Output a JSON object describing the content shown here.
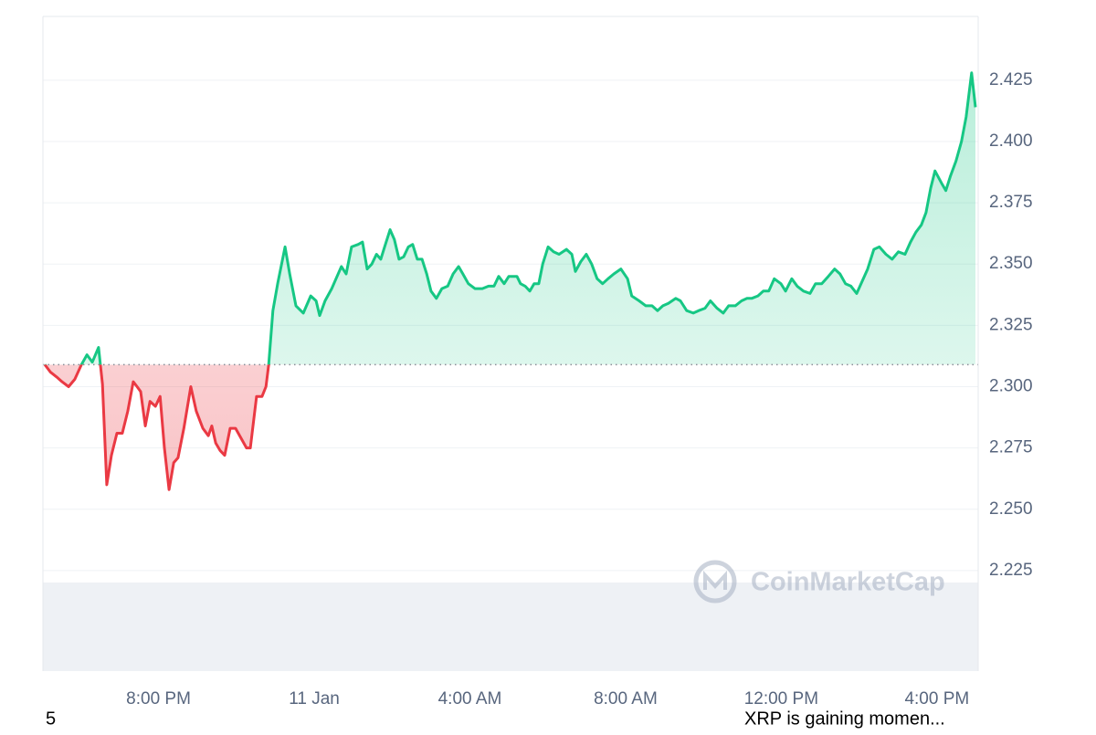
{
  "chart_data": {
    "type": "line",
    "x": [
      -6.92,
      -6.78,
      -6.62,
      -6.48,
      -6.31,
      -6.15,
      -5.98,
      -5.84,
      -5.7,
      -5.54,
      -5.44,
      -5.33,
      -5.21,
      -5.07,
      -4.93,
      -4.79,
      -4.65,
      -4.55,
      -4.46,
      -4.34,
      -4.22,
      -4.08,
      -3.96,
      -3.85,
      -3.73,
      -3.61,
      -3.5,
      -3.35,
      -3.17,
      -3.03,
      -2.86,
      -2.72,
      -2.63,
      -2.53,
      -2.42,
      -2.3,
      -2.16,
      -2.02,
      -1.88,
      -1.74,
      -1.64,
      -1.48,
      -1.34,
      -1.24,
      -1.17,
      -1.06,
      -0.94,
      -0.75,
      -0.63,
      -0.47,
      -0.28,
      -0.09,
      0.05,
      0.14,
      0.28,
      0.45,
      0.56,
      0.7,
      0.82,
      0.96,
      1.13,
      1.24,
      1.36,
      1.48,
      1.6,
      1.71,
      1.81,
      1.95,
      2.06,
      2.18,
      2.3,
      2.42,
      2.53,
      2.65,
      2.77,
      2.89,
      3.0,
      3.14,
      3.28,
      3.43,
      3.57,
      3.71,
      3.82,
      3.96,
      4.13,
      4.32,
      4.48,
      4.62,
      4.74,
      4.88,
      5.0,
      5.11,
      5.21,
      5.3,
      5.42,
      5.54,
      5.65,
      5.77,
      5.87,
      6.01,
      6.15,
      6.29,
      6.48,
      6.62,
      6.71,
      6.85,
      6.99,
      7.13,
      7.27,
      7.41,
      7.55,
      7.7,
      7.88,
      8.05,
      8.16,
      8.35,
      8.52,
      8.68,
      8.82,
      8.96,
      9.1,
      9.29,
      9.41,
      9.57,
      9.74,
      9.88,
      10.04,
      10.18,
      10.35,
      10.51,
      10.65,
      10.82,
      10.98,
      11.12,
      11.24,
      11.4,
      11.54,
      11.68,
      11.82,
      11.99,
      12.11,
      12.27,
      12.41,
      12.57,
      12.74,
      12.88,
      13.04,
      13.21,
      13.37,
      13.51,
      13.65,
      13.79,
      13.94,
      14.08,
      14.22,
      14.38,
      14.52,
      14.69,
      14.85,
      15.01,
      15.18,
      15.32,
      15.46,
      15.6,
      15.72,
      15.84,
      15.95,
      16.12,
      16.23,
      16.35,
      16.49,
      16.63,
      16.75,
      16.89,
      16.99
    ],
    "series": [
      {
        "values": [
          2.309,
          2.306,
          2.304,
          2.302,
          2.3,
          2.303,
          2.309,
          2.313,
          2.31,
          2.316,
          2.301,
          2.26,
          2.272,
          2.281,
          2.281,
          2.29,
          2.302,
          2.3,
          2.298,
          2.284,
          2.294,
          2.292,
          2.296,
          2.275,
          2.258,
          2.269,
          2.271,
          2.283,
          2.3,
          2.29,
          2.283,
          2.28,
          2.284,
          2.277,
          2.274,
          2.272,
          2.283,
          2.283,
          2.279,
          2.275,
          2.275,
          2.296,
          2.296,
          2.3,
          2.309,
          2.331,
          2.342,
          2.357,
          2.346,
          2.333,
          2.33,
          2.337,
          2.335,
          2.329,
          2.335,
          2.34,
          2.344,
          2.349,
          2.346,
          2.357,
          2.358,
          2.359,
          2.348,
          2.35,
          2.354,
          2.352,
          2.357,
          2.364,
          2.36,
          2.352,
          2.353,
          2.357,
          2.358,
          2.352,
          2.352,
          2.346,
          2.339,
          2.336,
          2.34,
          2.341,
          2.346,
          2.349,
          2.346,
          2.342,
          2.34,
          2.34,
          2.341,
          2.341,
          2.345,
          2.342,
          2.345,
          2.345,
          2.345,
          2.342,
          2.341,
          2.339,
          2.342,
          2.342,
          2.35,
          2.357,
          2.355,
          2.354,
          2.356,
          2.354,
          2.347,
          2.351,
          2.354,
          2.35,
          2.344,
          2.342,
          2.344,
          2.346,
          2.348,
          2.344,
          2.337,
          2.335,
          2.333,
          2.333,
          2.331,
          2.333,
          2.334,
          2.336,
          2.335,
          2.331,
          2.33,
          2.331,
          2.332,
          2.335,
          2.332,
          2.33,
          2.333,
          2.333,
          2.335,
          2.336,
          2.336,
          2.337,
          2.339,
          2.339,
          2.344,
          2.342,
          2.339,
          2.344,
          2.341,
          2.339,
          2.338,
          2.342,
          2.342,
          2.345,
          2.348,
          2.346,
          2.342,
          2.341,
          2.338,
          2.343,
          2.348,
          2.356,
          2.357,
          2.354,
          2.352,
          2.355,
          2.354,
          2.359,
          2.363,
          2.366,
          2.371,
          2.381,
          2.388,
          2.383,
          2.38,
          2.386,
          2.392,
          2.4,
          2.41,
          2.428,
          2.414
        ]
      }
    ],
    "baseline": 2.309,
    "up_color": "#16c784",
    "down_color": "#ea3943",
    "xlim": [
      -6.97,
      17.06
    ],
    "xticks": [
      {
        "value": -4,
        "label": "8:00 PM"
      },
      {
        "value": 0,
        "label": "11 Jan"
      },
      {
        "value": 4,
        "label": "4:00 AM"
      },
      {
        "value": 8,
        "label": "8:00 AM"
      },
      {
        "value": 12,
        "label": "12:00 PM"
      },
      {
        "value": 16,
        "label": "4:00 PM"
      }
    ],
    "ylim": [
      2.184,
      2.451
    ],
    "yticks": [
      2.225,
      {
        "value": 2.25,
        "label": "2.250"
      },
      2.275,
      {
        "value": 2.3,
        "label": "2.300"
      },
      2.325,
      {
        "value": 2.35,
        "label": "2.350"
      },
      2.375,
      {
        "value": 2.4,
        "label": "2.400"
      },
      2.425
    ],
    "grid": true,
    "watermark": "CoinMarketCap",
    "footer_left": "5",
    "footer_right": "XRP is gaining momen..."
  }
}
